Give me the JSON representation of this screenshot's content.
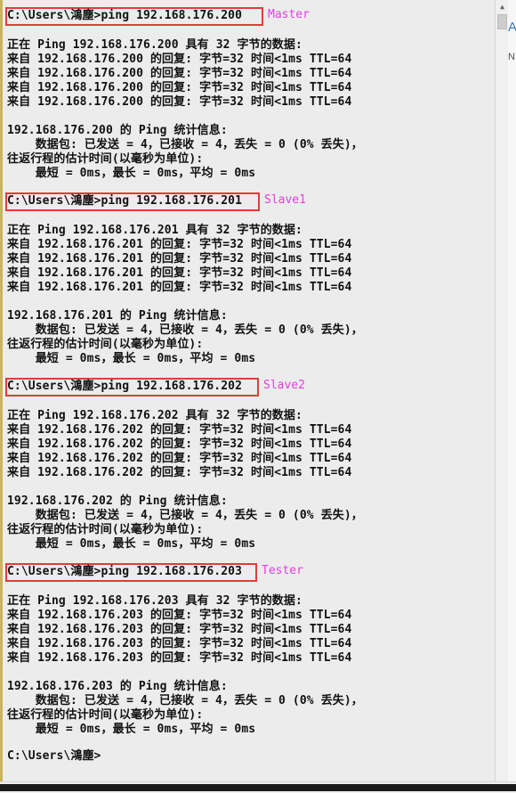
{
  "console": {
    "prompt": "C:\\Users\\鴻塵>",
    "blocks": [
      {
        "command": "C:\\Users\\鴻塵>ping 192.168.176.200",
        "tag": "Master",
        "header": "正在 Ping 192.168.176.200 具有 32 字节的数据:",
        "replies": [
          "来自 192.168.176.200 的回复: 字节=32 时间<1ms TTL=64",
          "来自 192.168.176.200 的回复: 字节=32 时间<1ms TTL=64",
          "来自 192.168.176.200 的回复: 字节=32 时间<1ms TTL=64",
          "来自 192.168.176.200 的回复: 字节=32 时间<1ms TTL=64"
        ],
        "stats_title": "192.168.176.200 的 Ping 统计信息:",
        "packets": "    数据包: 已发送 = 4，已接收 = 4，丢失 = 0 (0% 丢失)，",
        "rtt_label": "往返行程的估计时间(以毫秒为单位):",
        "rtt": "    最短 = 0ms，最长 = 0ms，平均 = 0ms"
      },
      {
        "command": "C:\\Users\\鴻塵>ping 192.168.176.201",
        "tag": "Slave1",
        "header": "正在 Ping 192.168.176.201 具有 32 字节的数据:",
        "replies": [
          "来自 192.168.176.201 的回复: 字节=32 时间<1ms TTL=64",
          "来自 192.168.176.201 的回复: 字节=32 时间<1ms TTL=64",
          "来自 192.168.176.201 的回复: 字节=32 时间<1ms TTL=64",
          "来自 192.168.176.201 的回复: 字节=32 时间<1ms TTL=64"
        ],
        "stats_title": "192.168.176.201 的 Ping 统计信息:",
        "packets": "    数据包: 已发送 = 4，已接收 = 4，丢失 = 0 (0% 丢失)，",
        "rtt_label": "往返行程的估计时间(以毫秒为单位):",
        "rtt": "    最短 = 0ms，最长 = 0ms，平均 = 0ms"
      },
      {
        "command": "C:\\Users\\鴻塵>ping 192.168.176.202",
        "tag": "Slave2",
        "header": "正在 Ping 192.168.176.202 具有 32 字节的数据:",
        "replies": [
          "来自 192.168.176.202 的回复: 字节=32 时间<1ms TTL=64",
          "来自 192.168.176.202 的回复: 字节=32 时间<1ms TTL=64",
          "来自 192.168.176.202 的回复: 字节=32 时间<1ms TTL=64",
          "来自 192.168.176.202 的回复: 字节=32 时间<1ms TTL=64"
        ],
        "stats_title": "192.168.176.202 的 Ping 统计信息:",
        "packets": "    数据包: 已发送 = 4，已接收 = 4，丢失 = 0 (0% 丢失)，",
        "rtt_label": "往返行程的估计时间(以毫秒为单位):",
        "rtt": "    最短 = 0ms，最长 = 0ms，平均 = 0ms"
      },
      {
        "command": "C:\\Users\\鴻塵>ping 192.168.176.203",
        "tag": "Tester",
        "header": "正在 Ping 192.168.176.203 具有 32 字节的数据:",
        "replies": [
          "来自 192.168.176.203 的回复: 字节=32 时间<1ms TTL=64",
          "来自 192.168.176.203 的回复: 字节=32 时间<1ms TTL=64",
          "来自 192.168.176.203 的回复: 字节=32 时间<1ms TTL=64",
          "来自 192.168.176.203 的回复: 字节=32 时间<1ms TTL=64"
        ],
        "stats_title": "192.168.176.203 的 Ping 统计信息:",
        "packets": "    数据包: 已发送 = 4，已接收 = 4，丢失 = 0 (0% 丢失)，",
        "rtt_label": "往返行程的估计时间(以毫秒为单位):",
        "rtt": "    最短 = 0ms，最长 = 0ms，平均 = 0ms"
      }
    ]
  },
  "scrollbar": {
    "up_icon": "arrow-up-icon"
  },
  "colors": {
    "highlight_border": "#e23b3b",
    "tag_text": "#e040e0",
    "console_bg": "#ececec"
  },
  "edge": {
    "glyph_a": "A",
    "glyph_b": "N"
  }
}
